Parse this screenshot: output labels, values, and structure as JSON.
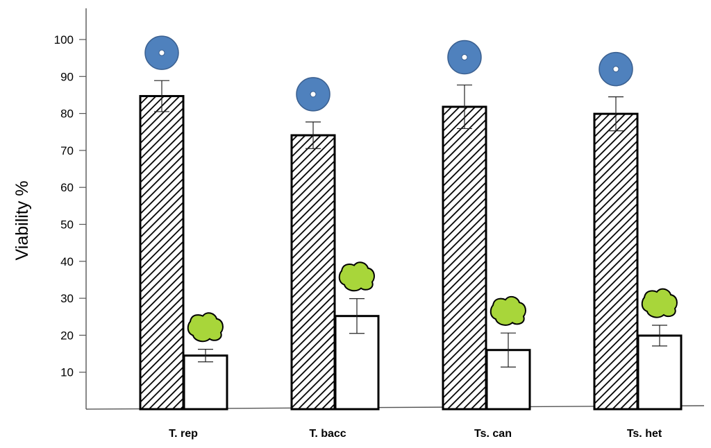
{
  "chart_data": {
    "type": "bar",
    "title": "",
    "xlabel": "",
    "ylabel": "Viability %",
    "ylim": [
      0,
      110
    ],
    "yticks": [
      10,
      20,
      30,
      40,
      50,
      60,
      70,
      80,
      90,
      100
    ],
    "categories": [
      "T. rep",
      "T. bacc",
      "Ts. can",
      "Ts. het"
    ],
    "grid": false,
    "legend": "none",
    "series": [
      {
        "pattern": "diagonal-hatch",
        "fill": "#ffffff",
        "marker_icon": "blue-circle-icon",
        "marker_color": "#4f81bd",
        "values": [
          84.7,
          74.1,
          81.8,
          79.9
        ],
        "errors": [
          4.2,
          3.6,
          5.9,
          4.6
        ]
      },
      {
        "pattern": "solid",
        "fill": "#ffffff",
        "marker_icon": "green-blob-icon",
        "marker_color": "#a8d63a",
        "values": [
          14.5,
          25.2,
          16.0,
          19.9
        ],
        "errors": [
          1.7,
          4.7,
          4.6,
          2.8
        ]
      }
    ]
  }
}
